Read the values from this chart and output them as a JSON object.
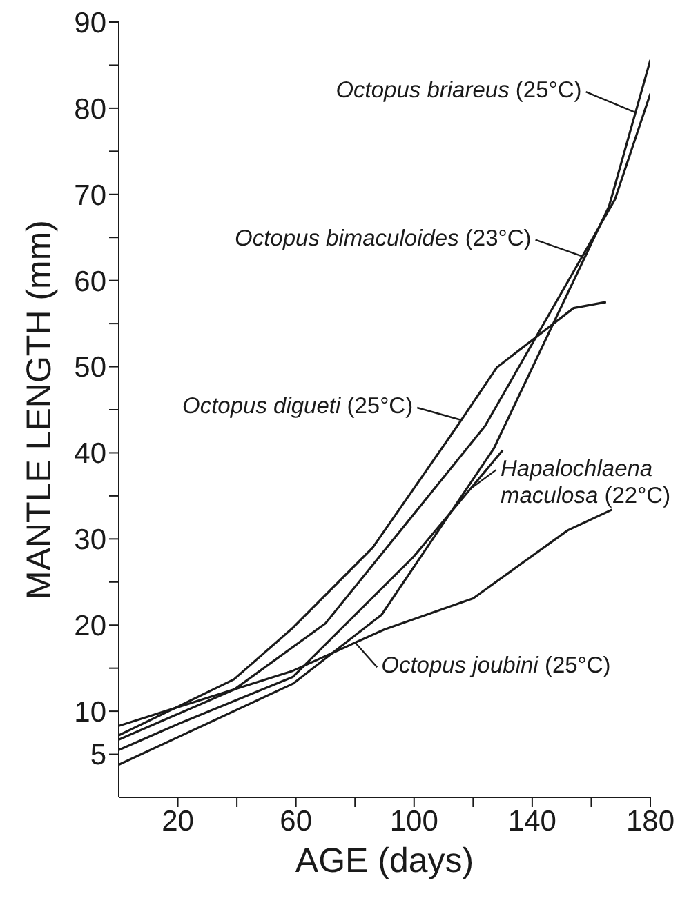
{
  "chart_data": {
    "type": "line",
    "xlabel": "AGE (days)",
    "ylabel": "MANTLE LENGTH (mm)",
    "xlim": [
      0,
      180
    ],
    "xticks": [
      20,
      {
        "value": 40,
        "label": null
      },
      60,
      {
        "value": 80,
        "label": null
      },
      100,
      {
        "value": 120,
        "label": null
      },
      140,
      {
        "value": 160,
        "label": null
      },
      180
    ],
    "ylim": [
      0,
      90
    ],
    "yticks": [
      5,
      10,
      {
        "value": 15,
        "label": null
      },
      20,
      {
        "value": 25,
        "label": null
      },
      30,
      {
        "value": 35,
        "label": null
      },
      40,
      {
        "value": 45,
        "label": null
      },
      50,
      {
        "value": 55,
        "label": null
      },
      60,
      {
        "value": 65,
        "label": null
      },
      70,
      {
        "value": 75,
        "label": null
      },
      80,
      {
        "value": 85,
        "label": null
      },
      90
    ],
    "grid": false,
    "legend": false,
    "marker": "none",
    "line_style": "solid",
    "series": [
      {
        "color": "#1a1a1a",
        "x": [
          0,
          59,
          89,
          127,
          166,
          180
        ],
        "values": [
          3.8,
          13.2,
          21.2,
          40.5,
          68.6,
          85.6
        ]
      },
      {
        "color": "#1a1a1a",
        "x": [
          0,
          39,
          70,
          124,
          168,
          180
        ],
        "values": [
          6.7,
          12.5,
          20.2,
          43.1,
          69.4,
          81.7
        ]
      },
      {
        "color": "#1a1a1a",
        "x": [
          0,
          39,
          59,
          86,
          114,
          128,
          154,
          165
        ],
        "values": [
          7.2,
          13.7,
          19.7,
          29,
          42.8,
          49.9,
          56.8,
          57.5
        ]
      },
      {
        "color": "#1a1a1a",
        "x": [
          0,
          20,
          59,
          100,
          130
        ],
        "values": [
          5.5,
          8.5,
          14,
          28,
          40.3
        ]
      },
      {
        "color": "#1a1a1a",
        "x": [
          0,
          59,
          90,
          120,
          152,
          167
        ],
        "values": [
          8.3,
          14.7,
          19.5,
          23.1,
          31,
          33.4
        ]
      }
    ],
    "annotations": [
      {
        "text": "Octopus briareus (25°C)",
        "x": 175,
        "y": 79.5
      },
      {
        "text": "Octopus bimaculoides (23°C)",
        "x": 157,
        "y": 62.8
      },
      {
        "text": "Octopus digueti (25°C)",
        "x": 116,
        "y": 43.8
      },
      {
        "text": "Hapalochlaena maculosa (22°C)",
        "x": 119,
        "y": 35.8
      },
      {
        "text": "Octopus joubini (25°C)",
        "x": 80,
        "y": 18
      }
    ]
  }
}
